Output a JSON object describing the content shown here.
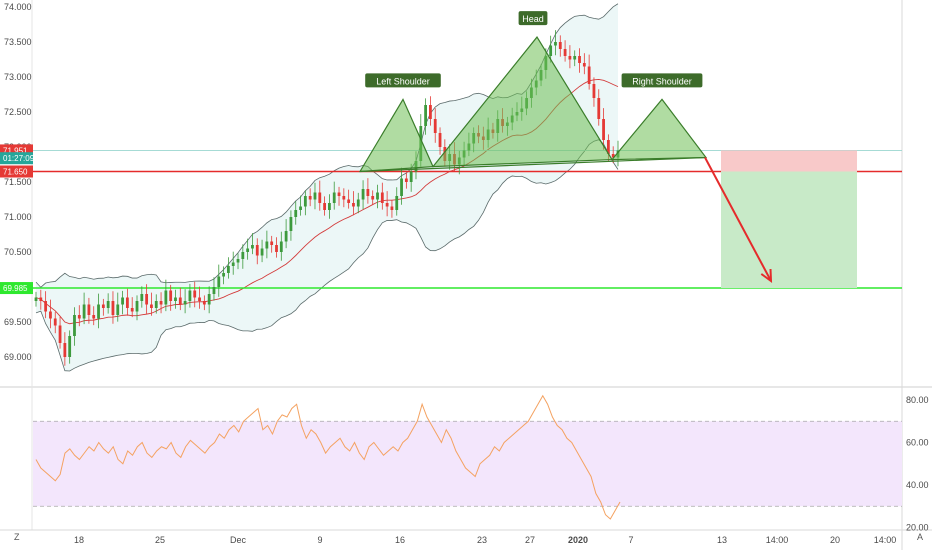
{
  "chart_data": [
    {
      "type": "candlestick",
      "title": "",
      "y_ticks": [
        "74.000",
        "73.500",
        "73.000",
        "72.500",
        "72.000",
        "71.500",
        "71.000",
        "70.500",
        "70.000",
        "69.500",
        "69.000"
      ],
      "x_ticks": [
        "18",
        "25",
        "Dec",
        "9",
        "16",
        "23",
        "27",
        "2020",
        "7",
        "13",
        "14:00",
        "20",
        "14:00"
      ],
      "price_scale_tags": [
        {
          "name": "last-price",
          "label": "71.951",
          "value": 71.951,
          "color": "#e53935"
        },
        {
          "name": "countdown",
          "label": "01:27:09",
          "value": 71.84,
          "color": "#26a69a"
        },
        {
          "name": "target",
          "label": "71.650",
          "value": 71.65,
          "color": "#e53935"
        },
        {
          "name": "stop",
          "label": "69.985",
          "value": 69.985,
          "color": "#2ee82e"
        }
      ],
      "levels": [
        {
          "name": "neckline-support",
          "value": 71.65,
          "color": "#e52b2b"
        },
        {
          "name": "take-profit",
          "value": 69.985,
          "color": "#2ee82e"
        },
        {
          "name": "last-price-line",
          "value": 71.951,
          "color": "#9ad6cf"
        }
      ],
      "pattern_labels": [
        "Left Shoulder",
        "Head",
        "Right Shoulder"
      ],
      "pattern_vertices": [
        {
          "x": "Dec 12",
          "y": 71.65
        },
        {
          "x": "Dec 15",
          "y": 72.68
        },
        {
          "x": "Dec 19",
          "y": 71.72
        },
        {
          "x": "Dec 27",
          "y": 73.57
        },
        {
          "x": "Jan 3",
          "y": 71.82
        },
        {
          "x": "Jan 8",
          "y": 72.68
        },
        {
          "x": "Jan 12",
          "y": 71.85
        }
      ],
      "trade_box": {
        "entry": 71.65,
        "stop": 71.951,
        "target": 69.985,
        "profit_color": "#c8eac8",
        "loss_color": "#f8c9c9"
      },
      "arrow": {
        "from": 71.85,
        "to": 70.0,
        "color": "#e52b2b"
      },
      "series": [
        {
          "name": "",
          "kind": "candles",
          "up_color": "#3d9a3d",
          "down_color": "#e53935",
          "close": [
            69.85,
            69.8,
            69.65,
            69.55,
            69.45,
            69.2,
            69.0,
            69.3,
            69.6,
            69.55,
            69.75,
            69.6,
            69.55,
            69.75,
            69.7,
            69.8,
            69.6,
            69.75,
            69.85,
            69.7,
            69.65,
            69.8,
            69.9,
            69.75,
            69.7,
            69.8,
            69.75,
            69.95,
            69.8,
            69.85,
            69.75,
            69.8,
            69.95,
            69.85,
            69.8,
            69.75,
            69.9,
            70.0,
            70.15,
            70.2,
            70.3,
            70.35,
            70.4,
            70.5,
            70.55,
            70.6,
            70.45,
            70.55,
            70.65,
            70.6,
            70.5,
            70.65,
            70.8,
            71.0,
            71.1,
            71.15,
            71.3,
            71.25,
            71.35,
            71.2,
            71.1,
            71.2,
            71.35,
            71.3,
            71.25,
            71.2,
            71.15,
            71.25,
            71.4,
            71.3,
            71.25,
            71.35,
            71.2,
            71.15,
            71.1,
            71.3,
            71.55,
            71.5,
            71.65,
            71.8,
            72.3,
            72.6,
            72.4,
            72.2,
            72.0,
            71.8,
            71.9,
            71.75,
            71.85,
            71.95,
            72.05,
            72.2,
            72.15,
            72.1,
            72.25,
            72.2,
            72.4,
            72.3,
            72.35,
            72.45,
            72.5,
            72.55,
            72.7,
            72.85,
            72.95,
            73.1,
            73.3,
            73.45,
            73.5,
            73.4,
            73.3,
            73.25,
            73.3,
            73.2,
            73.15,
            72.9,
            72.7,
            72.4,
            72.1,
            71.9,
            71.85,
            71.95
          ]
        },
        {
          "name": "",
          "kind": "bollinger-bands",
          "color": "#7a7a7a"
        },
        {
          "name": "",
          "kind": "moving-average",
          "color": "#d33b3b"
        }
      ]
    },
    {
      "type": "line",
      "title": "",
      "y_ticks": [
        "80.00",
        "60.00",
        "40.00",
        "20.00"
      ],
      "bands": {
        "upper": 70,
        "lower": 30,
        "fill": "#f3e6fc",
        "line": "#a8a8a8"
      },
      "series": [
        {
          "name": "",
          "color": "#f4a261",
          "values": [
            52,
            48,
            46,
            44,
            42,
            45,
            55,
            57,
            54,
            52,
            55,
            58,
            56,
            60,
            57,
            55,
            58,
            52,
            50,
            56,
            54,
            58,
            60,
            55,
            53,
            56,
            58,
            57,
            60,
            55,
            53,
            58,
            61,
            59,
            57,
            55,
            58,
            60,
            64,
            62,
            66,
            68,
            65,
            70,
            72,
            74,
            76,
            66,
            68,
            64,
            70,
            73,
            72,
            76,
            78,
            68,
            62,
            66,
            64,
            60,
            55,
            58,
            60,
            62,
            58,
            56,
            60,
            55,
            52,
            58,
            60,
            57,
            54,
            56,
            58,
            56,
            60,
            62,
            66,
            70,
            78,
            72,
            68,
            64,
            60,
            66,
            62,
            56,
            52,
            48,
            46,
            44,
            50,
            52,
            54,
            58,
            56,
            60,
            62,
            64,
            66,
            68,
            70,
            74,
            78,
            82,
            78,
            72,
            68,
            66,
            62,
            60,
            56,
            52,
            48,
            44,
            36,
            32,
            26,
            24,
            28,
            32
          ]
        }
      ]
    }
  ],
  "toolbar": {
    "z_label": "Z",
    "a_label": "A"
  }
}
